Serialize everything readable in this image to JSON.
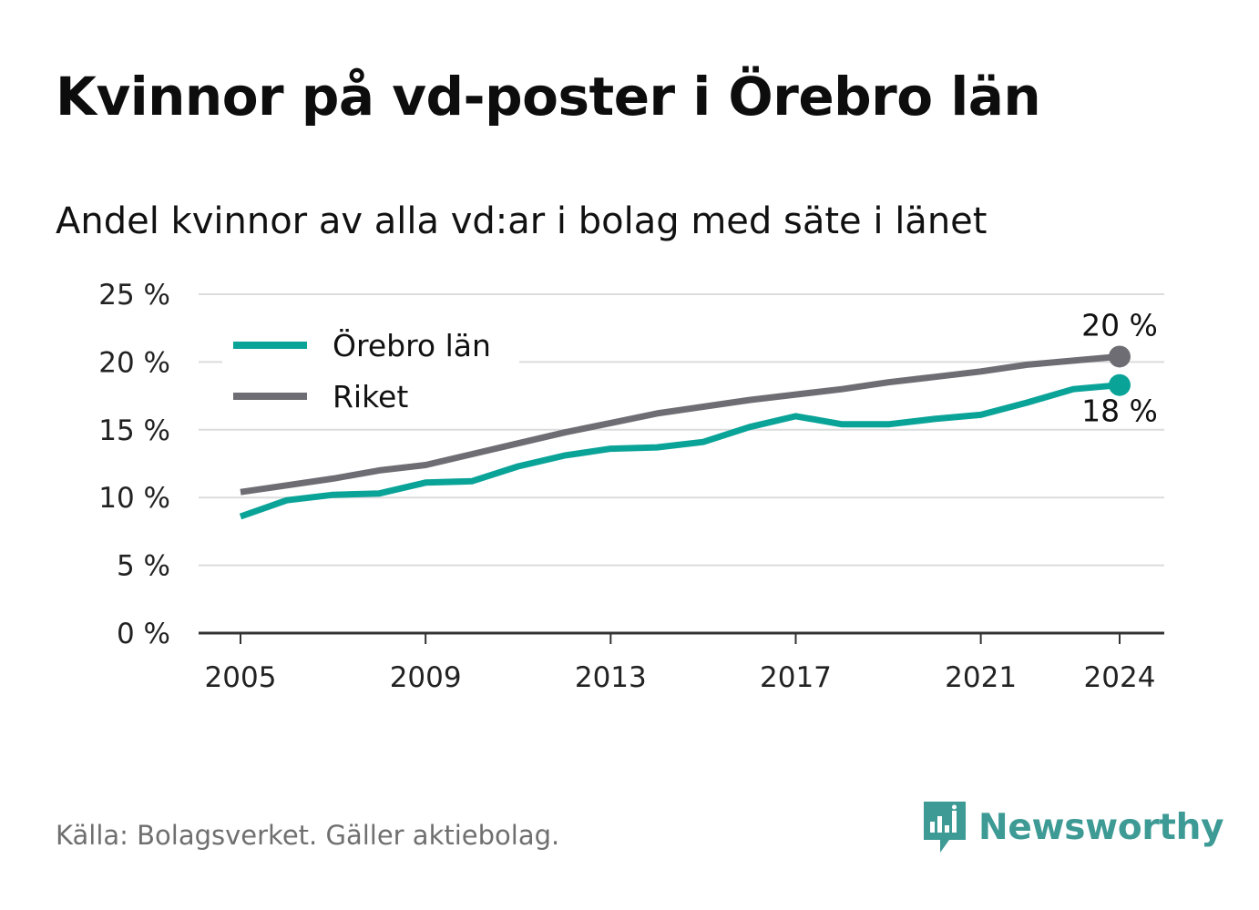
{
  "title": "Kvinnor på vd-poster i Örebro län",
  "subtitle": "Andel kvinnor av alla vd:ar i bolag med säte i länet",
  "source": "Källa: Bolagsverket. Gäller aktiebolag.",
  "brand": {
    "name": "Newsworthy",
    "icon": "newsworthy-logo-icon"
  },
  "colors": {
    "orebro": "#0aa398",
    "riket": "#6e6d73",
    "grid": "#dcdcdc",
    "axis": "#333333",
    "brand": "#3d9a95"
  },
  "chart_data": {
    "type": "line",
    "x": [
      2005,
      2006,
      2007,
      2008,
      2009,
      2010,
      2011,
      2012,
      2013,
      2014,
      2015,
      2016,
      2017,
      2018,
      2019,
      2020,
      2021,
      2022,
      2023,
      2024
    ],
    "series": [
      {
        "name": "Örebro län",
        "values": [
          8.6,
          9.8,
          10.2,
          10.3,
          11.1,
          11.2,
          12.3,
          13.1,
          13.6,
          13.7,
          14.1,
          15.2,
          16.0,
          15.4,
          15.4,
          15.8,
          16.1,
          17.0,
          18.0,
          18.3
        ],
        "end_label": "18 %"
      },
      {
        "name": "Riket",
        "values": [
          10.4,
          10.9,
          11.4,
          12.0,
          12.4,
          13.2,
          14.0,
          14.8,
          15.5,
          16.2,
          16.7,
          17.2,
          17.6,
          18.0,
          18.5,
          18.9,
          19.3,
          19.8,
          20.1,
          20.4
        ],
        "end_label": "20 %"
      }
    ],
    "x_ticks": [
      "2005",
      "2009",
      "2013",
      "2017",
      "2021",
      "2024"
    ],
    "y_ticks": [
      "0 %",
      "5 %",
      "10 %",
      "15 %",
      "20 %",
      "25 %"
    ],
    "ylim": [
      0,
      25
    ],
    "grid": true,
    "legend_position": "top-left"
  }
}
